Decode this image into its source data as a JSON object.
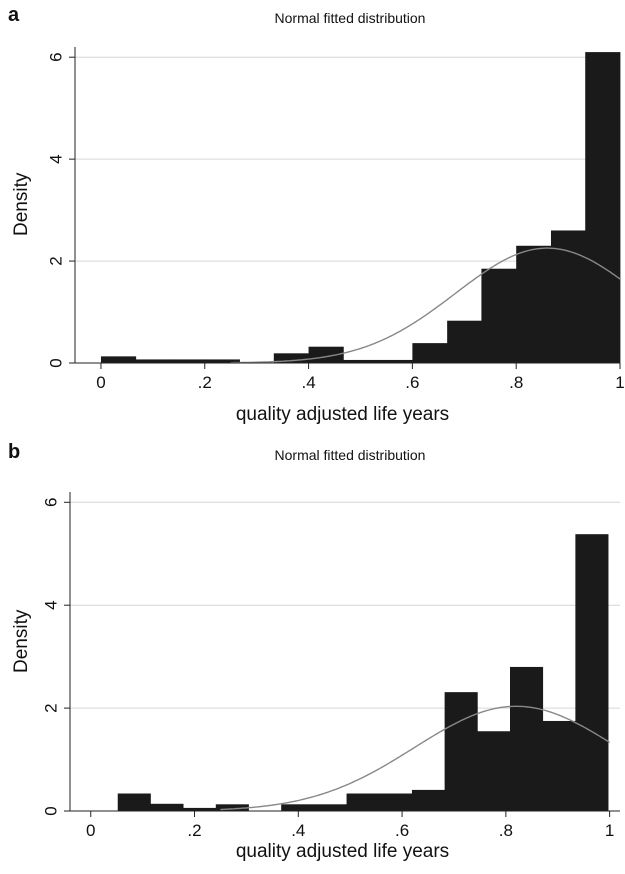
{
  "chart_data": [
    {
      "panel_label": "a",
      "type": "bar",
      "subtype": "histogram",
      "title": "Normal fitted distribution",
      "xlabel": "quality adjusted life years",
      "ylabel": "Density",
      "xlim": [
        -0.05,
        1.0
      ],
      "ylim": [
        0,
        6.2
      ],
      "xticks": [
        0,
        0.2,
        0.4,
        0.6,
        0.8,
        1.0
      ],
      "xtick_labels": [
        "0",
        ".2",
        ".4",
        ".6",
        ".8",
        "1"
      ],
      "yticks": [
        0,
        2,
        4,
        6
      ],
      "ytick_labels": [
        "0",
        "2",
        "4",
        "6"
      ],
      "grid": "horizontal",
      "bar_color": "#1a1a1a",
      "curve_color": "#888888",
      "bins": [
        {
          "x0": 0.0,
          "x1": 0.067,
          "density": 0.13
        },
        {
          "x0": 0.067,
          "x1": 0.133,
          "density": 0.07
        },
        {
          "x0": 0.133,
          "x1": 0.2,
          "density": 0.07
        },
        {
          "x0": 0.2,
          "x1": 0.267,
          "density": 0.07
        },
        {
          "x0": 0.267,
          "x1": 0.333,
          "density": 0.0
        },
        {
          "x0": 0.333,
          "x1": 0.4,
          "density": 0.19
        },
        {
          "x0": 0.4,
          "x1": 0.467,
          "density": 0.32
        },
        {
          "x0": 0.467,
          "x1": 0.533,
          "density": 0.06
        },
        {
          "x0": 0.533,
          "x1": 0.6,
          "density": 0.06
        },
        {
          "x0": 0.6,
          "x1": 0.667,
          "density": 0.39
        },
        {
          "x0": 0.667,
          "x1": 0.733,
          "density": 0.83
        },
        {
          "x0": 0.733,
          "x1": 0.8,
          "density": 1.85
        },
        {
          "x0": 0.8,
          "x1": 0.867,
          "density": 2.3
        },
        {
          "x0": 0.867,
          "x1": 0.933,
          "density": 2.6
        },
        {
          "x0": 0.933,
          "x1": 1.0,
          "density": 6.1
        }
      ],
      "normal_fit": {
        "mean": 0.86,
        "sd": 0.177
      }
    },
    {
      "panel_label": "b",
      "type": "bar",
      "subtype": "histogram",
      "title": "Normal fitted distribution",
      "xlabel": "quality adjusted life years",
      "ylabel": "Density",
      "xlim": [
        -0.04,
        1.02
      ],
      "ylim": [
        0,
        6.2
      ],
      "xticks": [
        0,
        0.2,
        0.4,
        0.6,
        0.8,
        1.0
      ],
      "xtick_labels": [
        "0",
        ".2",
        ".4",
        ".6",
        ".8",
        "1"
      ],
      "yticks": [
        0,
        2,
        4,
        6
      ],
      "ytick_labels": [
        "0",
        "2",
        "4",
        "6"
      ],
      "grid": "horizontal",
      "bar_color": "#1a1a1a",
      "curve_color": "#888888",
      "bins": [
        {
          "x0": 0.052,
          "x1": 0.115,
          "density": 0.34
        },
        {
          "x0": 0.115,
          "x1": 0.178,
          "density": 0.14
        },
        {
          "x0": 0.178,
          "x1": 0.241,
          "density": 0.06
        },
        {
          "x0": 0.241,
          "x1": 0.304,
          "density": 0.13
        },
        {
          "x0": 0.304,
          "x1": 0.367,
          "density": 0.0
        },
        {
          "x0": 0.367,
          "x1": 0.43,
          "density": 0.13
        },
        {
          "x0": 0.43,
          "x1": 0.493,
          "density": 0.13
        },
        {
          "x0": 0.493,
          "x1": 0.556,
          "density": 0.34
        },
        {
          "x0": 0.556,
          "x1": 0.619,
          "density": 0.34
        },
        {
          "x0": 0.619,
          "x1": 0.682,
          "density": 0.41
        },
        {
          "x0": 0.682,
          "x1": 0.745,
          "density": 2.31
        },
        {
          "x0": 0.745,
          "x1": 0.808,
          "density": 1.55
        },
        {
          "x0": 0.808,
          "x1": 0.871,
          "density": 2.8
        },
        {
          "x0": 0.871,
          "x1": 0.934,
          "density": 1.75
        },
        {
          "x0": 0.934,
          "x1": 0.997,
          "density": 5.38
        }
      ],
      "normal_fit": {
        "mean": 0.82,
        "sd": 0.196
      }
    }
  ]
}
